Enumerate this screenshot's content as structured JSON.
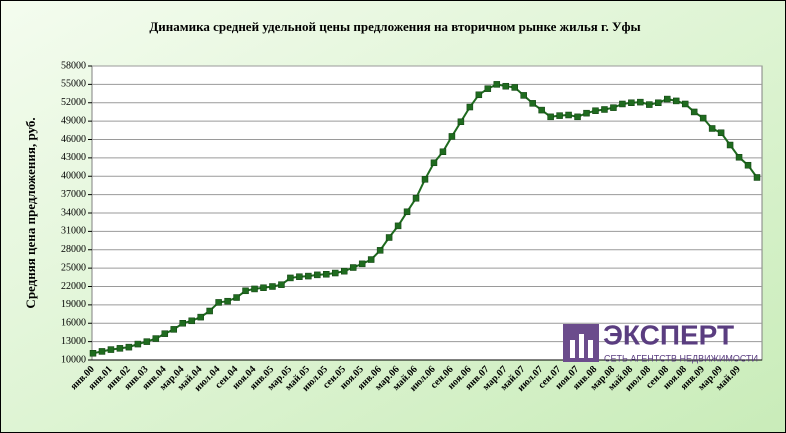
{
  "chart_data": {
    "type": "line",
    "title": "Динамика средней удельной цены предложения на вторичном рынке жилья г. Уфы",
    "y_label": "Средняя цена предложения, руб.",
    "categories": [
      "янв.00",
      null,
      "янв.01",
      null,
      "янв.02",
      null,
      "янв.03",
      null,
      "янв.04",
      null,
      "мар.04",
      null,
      "май.04",
      null,
      "июл.04",
      null,
      "сен.04",
      null,
      "ноя.04",
      null,
      "янв.05",
      null,
      "мар.05",
      null,
      "май.05",
      null,
      "июл.05",
      null,
      "сен.05",
      null,
      "ноя.05",
      null,
      "янв.06",
      null,
      "мар.06",
      null,
      "май.06",
      null,
      "июл.06",
      null,
      "сен.06",
      null,
      "ноя.06",
      null,
      "янв.07",
      null,
      "мар.07",
      null,
      "май.07",
      null,
      "июл.07",
      null,
      "сен.07",
      null,
      "ноя.07",
      null,
      "янв.08",
      null,
      "мар.08",
      null,
      "май.08",
      null,
      "июл.08",
      null,
      "сен.08",
      null,
      "ноя.08",
      null,
      "янв.09",
      null,
      "мар.09",
      null,
      "май.09",
      null,
      null
    ],
    "series": [
      {
        "name": "Средняя цена предложения",
        "color": "#1f6b1f",
        "values": [
          11100,
          11400,
          11700,
          11900,
          12100,
          12600,
          13000,
          13500,
          14300,
          15000,
          16000,
          16400,
          17000,
          18000,
          19400,
          19600,
          20200,
          21300,
          21600,
          21800,
          22000,
          22300,
          23400,
          23600,
          23700,
          23900,
          24000,
          24200,
          24500,
          25100,
          25700,
          26400,
          27900,
          30000,
          31900,
          34200,
          36400,
          39500,
          42200,
          44000,
          46500,
          48900,
          51300,
          53300,
          54300,
          55000,
          54700,
          54500,
          53200,
          51900,
          50800,
          49700,
          49900,
          50000,
          49700,
          50300,
          50700,
          50900,
          51200,
          51800,
          52000,
          52100,
          51700,
          52000,
          52600,
          52300,
          51800,
          50500,
          49500,
          47800,
          47100,
          45100,
          43100,
          41800,
          39800
        ]
      }
    ],
    "ylim": [
      10000,
      58000
    ],
    "yticks": [
      10000,
      13000,
      16000,
      19000,
      22000,
      25000,
      28000,
      31000,
      34000,
      37000,
      40000,
      43000,
      46000,
      49000,
      52000,
      55000,
      58000
    ],
    "grid": true,
    "logo": {
      "name": "ЭКСПЕРТ",
      "tagline": "СЕТЬ АГЕНТСТВ НЕДВИЖИМОСТИ"
    }
  }
}
